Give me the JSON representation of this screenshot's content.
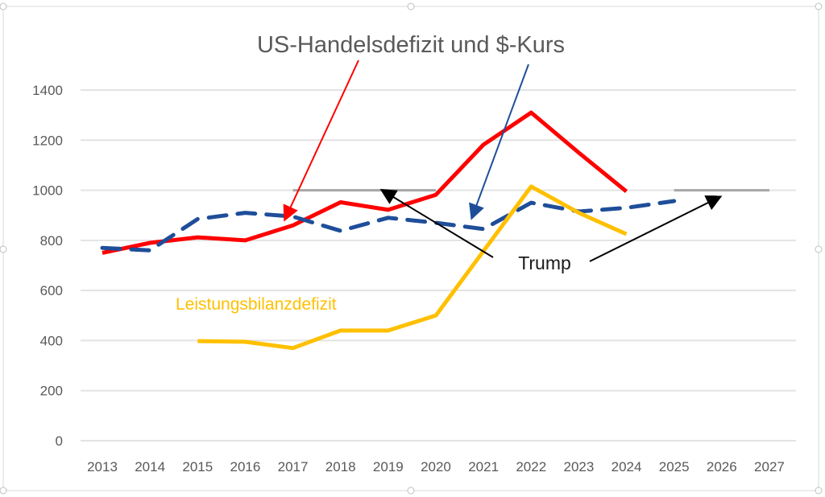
{
  "chart_data": {
    "type": "line",
    "title": "US-Handelsdefizit und $-Kurs",
    "xlabel": "",
    "ylabel": "",
    "categories": [
      "2013",
      "2014",
      "2015",
      "2016",
      "2017",
      "2018",
      "2019",
      "2020",
      "2021",
      "2022",
      "2023",
      "2024",
      "2025",
      "2026",
      "2027"
    ],
    "ylim": [
      0,
      1400
    ],
    "yticks": [
      "0",
      "200",
      "400",
      "600",
      "800",
      "1000",
      "1200",
      "1400"
    ],
    "grid": true,
    "series": [
      {
        "key": "handelsdefizit",
        "color": "#ff0000",
        "dash": false,
        "values": [
          750,
          790,
          812,
          800,
          860,
          952,
          922,
          982,
          1182,
          1310,
          1150,
          995,
          null,
          null,
          null
        ]
      },
      {
        "key": "dollar",
        "color": "#1f4e99",
        "dash": true,
        "values": [
          770,
          760,
          885,
          910,
          895,
          838,
          890,
          870,
          845,
          950,
          915,
          930,
          957,
          null,
          null
        ]
      },
      {
        "name": "Leistungsbilanzdefizit",
        "key": "leistungsbilanz",
        "color": "#ffc000",
        "dash": false,
        "values": [
          null,
          null,
          398,
          395,
          370,
          440,
          440,
          500,
          757,
          1015,
          910,
          825,
          null,
          null,
          null
        ]
      },
      {
        "key": "trump1",
        "color": "#a6a6a6",
        "dash": false,
        "values": [
          null,
          null,
          null,
          null,
          1000,
          1000,
          1000,
          1000,
          null,
          null,
          null,
          null,
          null,
          null,
          null
        ]
      },
      {
        "key": "trump2",
        "color": "#a6a6a6",
        "dash": false,
        "values": [
          null,
          null,
          null,
          null,
          null,
          null,
          null,
          null,
          null,
          null,
          null,
          null,
          1000,
          1000,
          1000
        ]
      }
    ],
    "annotations": {
      "series_label": "Leistungsbilanzdefizit",
      "trump": "Trump"
    }
  }
}
